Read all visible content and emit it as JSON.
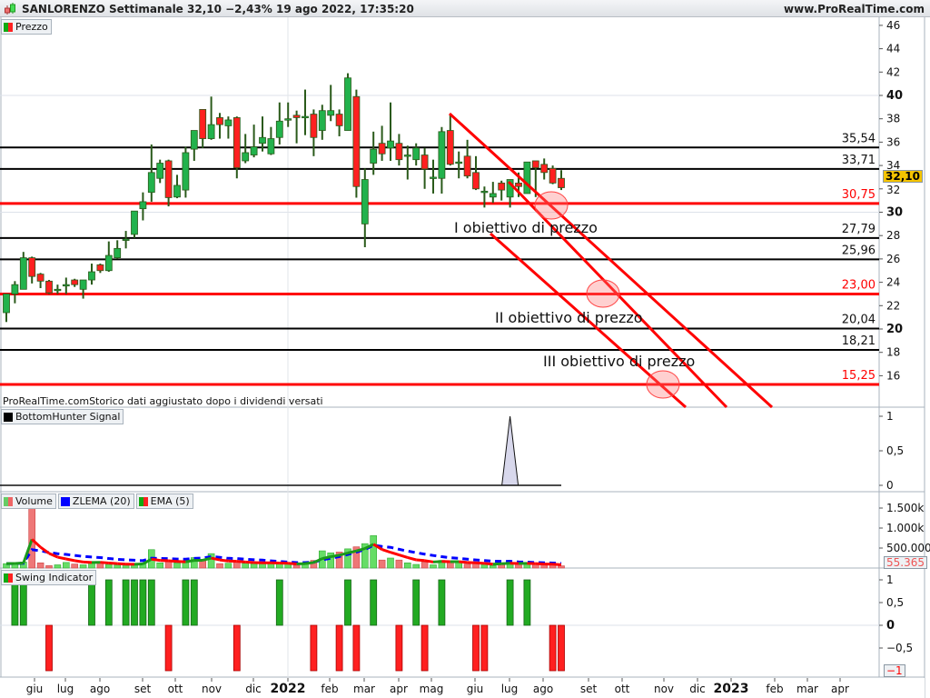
{
  "header": {
    "title": "SANLORENZO Settimanale 32,10 −2,43% 19 ago 2022, 17:35:20",
    "site": "www.ProRealTime.com"
  },
  "panels": {
    "price_label": "Prezzo",
    "bottomhunter_label": "BottomHunter Signal",
    "volume_label": "Volume",
    "zlema_label": "ZLEMA (20)",
    "ema_label": "EMA (5)",
    "swing_label": "Swing Indicator",
    "footnote": "ProRealTime.comStorico dati aggiustato dopo i dividendi versati"
  },
  "annotations": [
    "I obiettivo di prezzo",
    "II obiettivo di prezzo",
    "III obiettivo di prezzo"
  ],
  "badges": {
    "last_price": "32,10",
    "last_volume": "55.365",
    "last_swing": "−1"
  },
  "colors": {
    "up": "#22b24c",
    "down": "#ff2020",
    "wick": "#2a5a1a",
    "level_black": "#000000",
    "level_red": "#ff0000",
    "zlema": "#0000ff",
    "badge": "#f5c400"
  },
  "chart_data": [
    {
      "type": "candlestick",
      "name": "Prezzo",
      "ylim": [
        14,
        47
      ],
      "yticks": [
        "46",
        "44",
        "42",
        "40",
        "38",
        "36",
        "34",
        "32",
        "30",
        "28",
        "26",
        "24",
        "22",
        "20",
        "18",
        "16"
      ],
      "ohlc": [
        [
          21.4,
          23.0,
          20.6,
          23.0
        ],
        [
          23.0,
          24.1,
          22.2,
          23.8
        ],
        [
          23.4,
          26.6,
          23.4,
          26.1
        ],
        [
          26.1,
          26.2,
          23.9,
          24.5
        ],
        [
          24.7,
          24.8,
          23.5,
          24.1
        ],
        [
          24.1,
          24.2,
          23.0,
          23.1
        ],
        [
          23.4,
          23.8,
          23.0,
          23.4
        ],
        [
          23.7,
          24.4,
          23.0,
          23.8
        ],
        [
          24.2,
          24.3,
          23.6,
          23.8
        ],
        [
          23.4,
          24.2,
          22.6,
          24.2
        ],
        [
          24.2,
          25.6,
          23.8,
          24.9
        ],
        [
          25.5,
          25.6,
          24.8,
          25.0
        ],
        [
          25.0,
          27.5,
          24.9,
          26.3
        ],
        [
          26.1,
          27.6,
          26.0,
          26.9
        ],
        [
          27.6,
          28.4,
          26.9,
          27.7
        ],
        [
          28.1,
          30.1,
          27.8,
          30.1
        ],
        [
          30.3,
          31.7,
          29.3,
          30.9
        ],
        [
          31.7,
          35.8,
          30.9,
          33.4
        ],
        [
          32.9,
          34.5,
          32.5,
          34.2
        ],
        [
          34.4,
          34.5,
          30.5,
          31.25
        ],
        [
          31.3,
          33.2,
          31.2,
          32.3
        ],
        [
          31.9,
          35.6,
          31.25,
          35.1
        ],
        [
          35.4,
          37.0,
          34.4,
          37.0
        ],
        [
          38.8,
          38.8,
          35.5,
          36.3
        ],
        [
          36.3,
          39.9,
          36.2,
          37.5
        ],
        [
          38.1,
          38.5,
          36.3,
          37.5
        ],
        [
          37.4,
          38.2,
          36.3,
          37.9
        ],
        [
          38.1,
          38.2,
          32.9,
          33.8
        ],
        [
          34.4,
          36.7,
          34.2,
          35.1
        ],
        [
          34.9,
          37.5,
          34.7,
          35.6
        ],
        [
          35.9,
          38.2,
          35.2,
          36.4
        ],
        [
          35.0,
          37.3,
          34.9,
          36.3
        ],
        [
          36.4,
          39.4,
          35.8,
          37.8
        ],
        [
          38.0,
          39.4,
          37.3,
          38.0
        ],
        [
          38.3,
          38.7,
          35.9,
          38.1
        ],
        [
          38.2,
          40.5,
          36.6,
          38.2
        ],
        [
          38.4,
          38.8,
          34.8,
          36.4
        ],
        [
          37.0,
          39.2,
          36.2,
          38.7
        ],
        [
          38.3,
          40.9,
          37.8,
          38.7
        ],
        [
          38.4,
          38.8,
          36.5,
          37.4
        ],
        [
          37.0,
          41.9,
          37.0,
          41.5
        ],
        [
          39.9,
          40.5,
          31.25,
          32.2
        ],
        [
          29.0,
          33.75,
          27.0,
          32.8
        ],
        [
          34.2,
          36.9,
          33.2,
          35.4
        ],
        [
          35.9,
          37.4,
          34.4,
          35.0
        ],
        [
          35.5,
          39.4,
          34.4,
          36.1
        ],
        [
          35.9,
          36.7,
          34.0,
          34.5
        ],
        [
          34.9,
          35.7,
          32.8,
          34.9
        ],
        [
          34.5,
          35.9,
          34.0,
          35.5
        ],
        [
          34.9,
          35.5,
          32.0,
          33.7
        ],
        [
          33.0,
          34.5,
          31.6,
          33.0
        ],
        [
          32.9,
          37.3,
          31.6,
          36.9
        ],
        [
          37.0,
          38.4,
          34.0,
          34.1
        ],
        [
          34.3,
          35.2,
          32.9,
          34.3
        ],
        [
          34.8,
          36.2,
          32.9,
          33.1
        ],
        [
          33.4,
          34.8,
          31.9,
          32.0
        ],
        [
          31.8,
          32.2,
          30.4,
          31.8
        ],
        [
          31.3,
          32.6,
          30.8,
          31.6
        ],
        [
          32.5,
          32.7,
          31.0,
          31.9
        ],
        [
          31.3,
          32.8,
          30.4,
          32.8
        ],
        [
          32.5,
          33.4,
          31.3,
          32.2
        ],
        [
          31.6,
          34.3,
          31.6,
          34.3
        ],
        [
          34.4,
          34.4,
          31.3,
          33.8
        ],
        [
          34.1,
          34.6,
          32.8,
          33.4
        ],
        [
          33.75,
          34.0,
          32.4,
          32.5
        ],
        [
          32.9,
          33.6,
          31.9,
          32.1
        ]
      ],
      "levels": [
        {
          "value": 35.54,
          "label": "35,54",
          "color": "black"
        },
        {
          "value": 33.71,
          "label": "33,71",
          "color": "black"
        },
        {
          "value": 30.75,
          "label": "30,75",
          "color": "red"
        },
        {
          "value": 27.79,
          "label": "27,79",
          "color": "black"
        },
        {
          "value": 25.96,
          "label": "25,96",
          "color": "black"
        },
        {
          "value": 23.0,
          "label": "23,00",
          "color": "red"
        },
        {
          "value": 20.04,
          "label": "20,04",
          "color": "black"
        },
        {
          "value": 18.21,
          "label": "18,21",
          "color": "black"
        },
        {
          "value": 15.25,
          "label": "15,25",
          "color": "red"
        }
      ]
    },
    {
      "type": "line",
      "name": "BottomHunter Signal",
      "ylim": [
        0,
        1
      ],
      "yticks": [
        "1",
        "0,5",
        "0"
      ],
      "signal_week": 60,
      "signal_value": 1
    },
    {
      "type": "bar",
      "name": "Volume",
      "unit": "k",
      "yticks": [
        "1.500k",
        "1.000k",
        "500.000"
      ],
      "values": [
        110,
        120,
        150,
        1900,
        130,
        60,
        80,
        140,
        100,
        80,
        120,
        150,
        90,
        80,
        70,
        90,
        120,
        460,
        130,
        160,
        130,
        140,
        260,
        200,
        360,
        110,
        120,
        150,
        120,
        110,
        120,
        130,
        110,
        110,
        70,
        130,
        190,
        430,
        380,
        400,
        480,
        530,
        610,
        810,
        200,
        250,
        200,
        130,
        90,
        150,
        80,
        190,
        150,
        160,
        100,
        110,
        90,
        60,
        130,
        140,
        100,
        120,
        100,
        80,
        90,
        55
      ]
    },
    {
      "type": "bar",
      "name": "Swing Indicator",
      "ylim": [
        -1,
        1
      ],
      "yticks": [
        "1",
        "0,5",
        "0",
        "−0,5"
      ],
      "values": [
        0,
        1,
        1,
        0,
        0,
        -1,
        0,
        0,
        0,
        0,
        1,
        0,
        1,
        0,
        1,
        1,
        1,
        1,
        0,
        -1,
        0,
        1,
        1,
        0,
        0,
        0,
        0,
        -1,
        0,
        0,
        0,
        0,
        1,
        0,
        0,
        0,
        -1,
        0,
        0,
        -1,
        1,
        -1,
        0,
        1,
        0,
        0,
        -1,
        0,
        1,
        -1,
        0,
        1,
        0,
        0,
        0,
        -1,
        -1,
        0,
        0,
        1,
        0,
        1,
        0,
        0,
        -1,
        -1
      ]
    }
  ],
  "x_axis": [
    "giu",
    "lug",
    "ago",
    "set",
    "ott",
    "nov",
    "dic",
    "2022",
    "feb",
    "mar",
    "apr",
    "mag",
    "giu",
    "lug",
    "ago",
    "set",
    "ott",
    "nov",
    "dic",
    "2023",
    "feb",
    "mar",
    "apr"
  ]
}
